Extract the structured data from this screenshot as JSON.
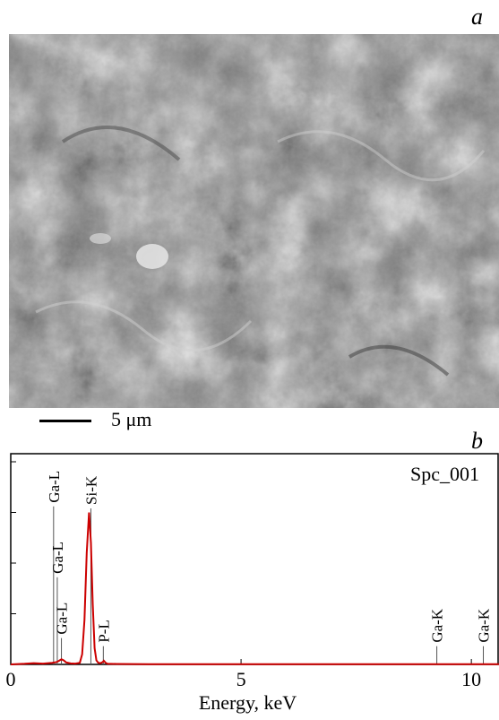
{
  "panels": {
    "a_label": "a",
    "b_label": "b"
  },
  "sem_image": {
    "scale_bar_label": "5 μm"
  },
  "chart_data": {
    "type": "line",
    "title": "",
    "annotation": "Spc_001",
    "xlabel": "Energy, keV",
    "ylabel": "",
    "xlim": [
      0,
      10.6
    ],
    "ylim": [
      0,
      1
    ],
    "x_ticks": [
      0,
      5,
      10
    ],
    "x_tick_labels": [
      "0",
      "5",
      "10"
    ],
    "grid": false,
    "legend": "none",
    "series": [
      {
        "color": "#cc0000",
        "x": [
          0.0,
          0.3,
          0.5,
          0.7,
          0.9,
          1.0,
          1.05,
          1.1,
          1.15,
          1.2,
          1.3,
          1.4,
          1.5,
          1.55,
          1.6,
          1.65,
          1.7,
          1.74,
          1.78,
          1.82,
          1.86,
          1.9,
          1.95,
          2.0,
          2.02,
          2.06,
          2.1,
          2.3,
          3.0,
          5.0,
          7.0,
          9.2,
          10.3,
          10.6
        ],
        "y": [
          0.0,
          0.003,
          0.006,
          0.004,
          0.008,
          0.012,
          0.018,
          0.025,
          0.02,
          0.01,
          0.005,
          0.004,
          0.008,
          0.05,
          0.22,
          0.55,
          0.75,
          0.6,
          0.3,
          0.08,
          0.02,
          0.008,
          0.006,
          0.012,
          0.018,
          0.008,
          0.003,
          0.002,
          0.001,
          0.001,
          0.001,
          0.001,
          0.001,
          0.001
        ]
      }
    ],
    "peak_labels": [
      {
        "label": "Ga-L",
        "energy": 0.93,
        "height": 0.78
      },
      {
        "label": "Ga-L",
        "energy": 1.01,
        "height": 0.43
      },
      {
        "label": "Ga-L",
        "energy": 1.1,
        "height": 0.13
      },
      {
        "label": "Si-K",
        "energy": 1.74,
        "height": 0.77
      },
      {
        "label": "P-L",
        "energy": 2.01,
        "height": 0.09
      },
      {
        "label": "Ga-K",
        "energy": 9.25,
        "height": 0.09
      },
      {
        "label": "Ga-K",
        "energy": 10.26,
        "height": 0.09
      }
    ]
  }
}
